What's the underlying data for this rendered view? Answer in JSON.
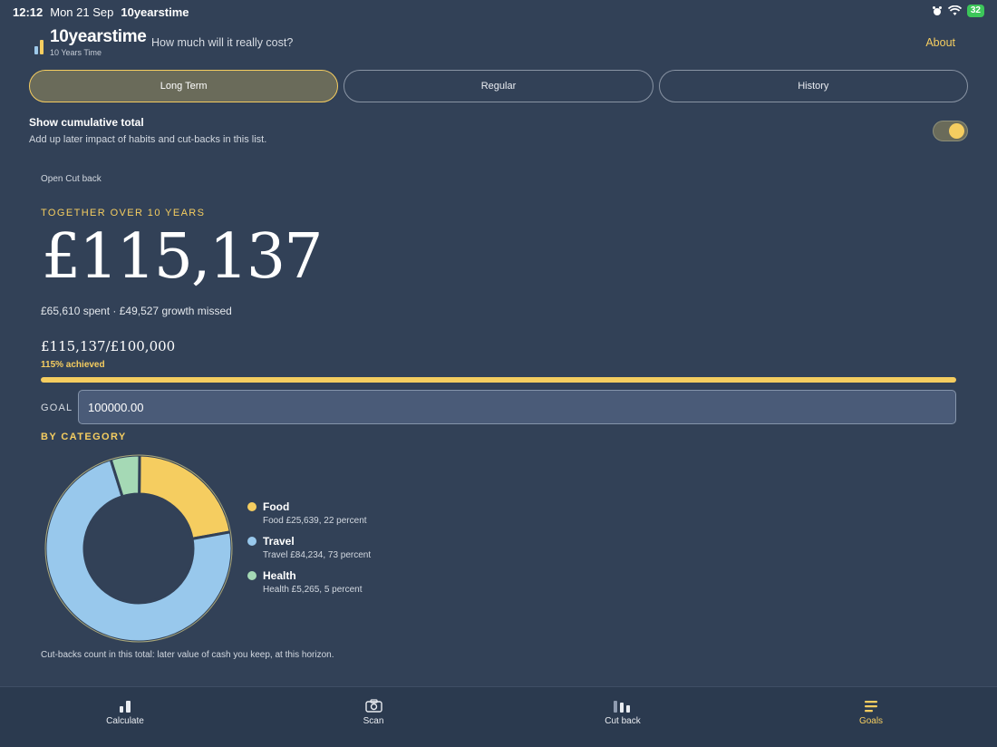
{
  "status_bar": {
    "time": "12:12",
    "date": "Mon 21 Sep",
    "app": "10yearstime",
    "battery": "32"
  },
  "header": {
    "title": "10yearstime",
    "subtitle": "10 Years Time",
    "tagline": "How much will it really cost?",
    "about": "About"
  },
  "tabs": [
    {
      "label": "Long Term",
      "active": true
    },
    {
      "label": "Regular",
      "active": false
    },
    {
      "label": "History",
      "active": false
    }
  ],
  "cumulative": {
    "title": "Show cumulative total",
    "description": "Add up later impact of habits and cut-backs in this list.",
    "enabled": true
  },
  "open_cut_back": "Open Cut back",
  "summary": {
    "heading": "TOGETHER OVER 10 YEARS",
    "total": "£115,137",
    "breakdown": "£65,610 spent · £49,527 growth missed"
  },
  "goal": {
    "ratio": "£115,137/£100,000",
    "achieved": "115% achieved",
    "progress": 1.0,
    "label": "GOAL",
    "value": "100000.00"
  },
  "category": {
    "heading": "BY CATEGORY",
    "items": [
      {
        "name": "Food",
        "detail": "Food £25,639, 22 percent",
        "percent": 22,
        "color": "#f5cd60"
      },
      {
        "name": "Travel",
        "detail": "Travel £84,234, 73 percent",
        "percent": 73,
        "color": "#98c8ec"
      },
      {
        "name": "Health",
        "detail": "Health £5,265, 5 percent",
        "percent": 5,
        "color": "#a5d9b5"
      }
    ]
  },
  "footnote": "Cut-backs count in this total: later value of cash you keep, at this horizon.",
  "nav": {
    "items": [
      {
        "label": "Calculate",
        "icon": "bar-chart-icon",
        "active": false
      },
      {
        "label": "Scan",
        "icon": "camera-icon",
        "active": false
      },
      {
        "label": "Cut back",
        "icon": "cut-back-icon",
        "active": false
      },
      {
        "label": "Goals",
        "icon": "goals-list-icon",
        "active": true
      }
    ]
  },
  "colors": {
    "background": "#324157",
    "accent": "#f5cd60"
  }
}
